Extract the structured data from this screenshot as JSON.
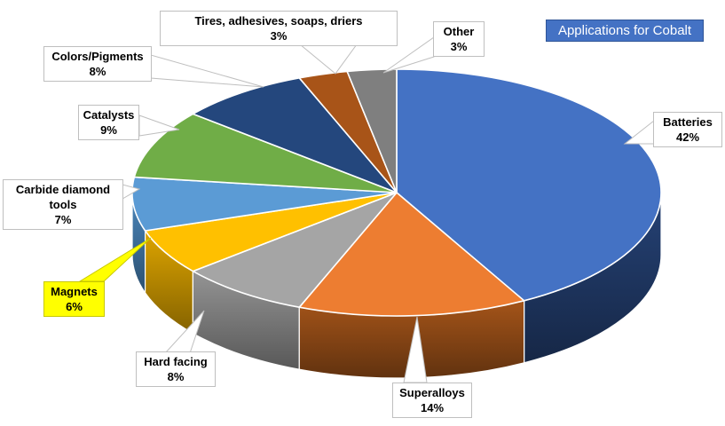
{
  "title": {
    "text": "Applications for Cobalt",
    "bg": "#4472C4",
    "border": "#2F5597",
    "color": "#FFFFFF"
  },
  "chart_data": {
    "type": "pie",
    "style": "3d-exploded-none",
    "title": "Applications for Cobalt",
    "start_angle_deg": 0,
    "direction": "clockwise",
    "legend_position": "none",
    "data_labels": "callout-boxes-with-percent",
    "slices": [
      {
        "label": "Batteries",
        "pct": "42%",
        "value": 42,
        "color": "#4472C4",
        "side": "#1F3864"
      },
      {
        "label": "Superalloys",
        "pct": "14%",
        "value": 14,
        "color": "#ED7D31",
        "side": "#8B4715"
      },
      {
        "label": "Hard facing",
        "pct": "8%",
        "value": 8,
        "color": "#A5A5A5",
        "side": "#7D7D7D"
      },
      {
        "label": "Magnets",
        "pct": "6%",
        "value": 6,
        "color": "#FFC000",
        "side": "#BC8C00",
        "highlight": true
      },
      {
        "label": "Carbide diamond tools",
        "pct": "7%",
        "value": 7,
        "color": "#5B9BD5",
        "side": "#3F72A0"
      },
      {
        "label": "Catalysts",
        "pct": "9%",
        "value": 9,
        "color": "#70AD47",
        "side": "#53802F"
      },
      {
        "label": "Colors/Pigments",
        "pct": "8%",
        "value": 8,
        "color": "#24477D",
        "side": "#16294A"
      },
      {
        "label": "Tires, adhesives, soaps, driers",
        "pct": "3%",
        "value": 3,
        "color": "#A85418",
        "side": "#703509"
      },
      {
        "label": "Other",
        "pct": "3%",
        "value": 3,
        "color": "#7F7F7F",
        "side": "#595959"
      }
    ],
    "highlight": {
      "label": "Magnets",
      "box_bg": "#FFFF00",
      "box_border": "#C8C800"
    }
  }
}
